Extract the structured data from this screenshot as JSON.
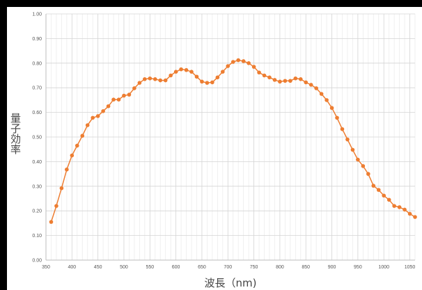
{
  "chart_data": {
    "type": "line",
    "xlabel": "波長（nm)",
    "ylabel": "量子効率",
    "xlim": [
      350,
      1060
    ],
    "ylim": [
      0.0,
      1.0
    ],
    "x_ticks": [
      350,
      400,
      450,
      500,
      550,
      600,
      650,
      700,
      750,
      800,
      850,
      900,
      950,
      1000,
      1050
    ],
    "y_ticks": [
      "0.00",
      "0.10",
      "0.20",
      "0.30",
      "0.40",
      "0.50",
      "0.60",
      "0.70",
      "0.80",
      "0.90",
      "1.00"
    ],
    "grid": true,
    "series": [
      {
        "color": "#ED7D31",
        "x": [
          360,
          370,
          380,
          390,
          400,
          410,
          420,
          430,
          440,
          450,
          460,
          470,
          480,
          490,
          500,
          510,
          520,
          530,
          540,
          550,
          560,
          570,
          580,
          590,
          600,
          610,
          620,
          630,
          640,
          650,
          660,
          670,
          680,
          690,
          700,
          710,
          720,
          730,
          740,
          750,
          760,
          770,
          780,
          790,
          800,
          810,
          820,
          830,
          840,
          850,
          860,
          870,
          880,
          890,
          900,
          910,
          920,
          930,
          940,
          950,
          960,
          970,
          980,
          990,
          1000,
          1010,
          1020,
          1030,
          1040,
          1050,
          1060
        ],
        "y": [
          0.155,
          0.22,
          0.292,
          0.368,
          0.425,
          0.465,
          0.505,
          0.548,
          0.578,
          0.585,
          0.605,
          0.625,
          0.652,
          0.652,
          0.668,
          0.672,
          0.698,
          0.72,
          0.735,
          0.738,
          0.735,
          0.73,
          0.73,
          0.75,
          0.765,
          0.775,
          0.772,
          0.765,
          0.745,
          0.725,
          0.72,
          0.722,
          0.742,
          0.765,
          0.788,
          0.805,
          0.812,
          0.808,
          0.8,
          0.785,
          0.762,
          0.75,
          0.742,
          0.732,
          0.725,
          0.728,
          0.728,
          0.738,
          0.735,
          0.722,
          0.712,
          0.698,
          0.675,
          0.65,
          0.618,
          0.578,
          0.532,
          0.49,
          0.448,
          0.408,
          0.382,
          0.35,
          0.302,
          0.285,
          0.262,
          0.245,
          0.22,
          0.215,
          0.205,
          0.188,
          0.175
        ]
      }
    ]
  }
}
